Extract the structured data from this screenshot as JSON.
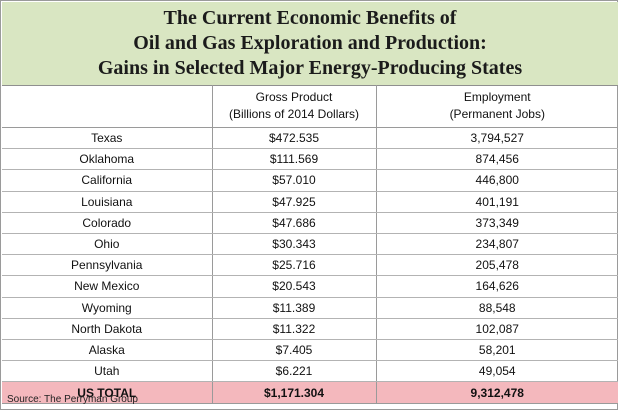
{
  "title": {
    "line1": "The Current Economic Benefits of",
    "line2": "Oil and Gas Exploration and Production:",
    "line3": "Gains in Selected Major Energy-Producing States"
  },
  "columns": {
    "state": "",
    "gross_product": {
      "line1": "Gross Product",
      "line2": "(Billions of 2014 Dollars)"
    },
    "employment": {
      "line1": "Employment",
      "line2": "(Permanent Jobs)"
    }
  },
  "rows": [
    {
      "state": "Texas",
      "gross_product": "$472.535",
      "employment": "3,794,527"
    },
    {
      "state": "Oklahoma",
      "gross_product": "$111.569",
      "employment": "874,456"
    },
    {
      "state": "California",
      "gross_product": "$57.010",
      "employment": "446,800"
    },
    {
      "state": "Louisiana",
      "gross_product": "$47.925",
      "employment": "401,191"
    },
    {
      "state": "Colorado",
      "gross_product": "$47.686",
      "employment": "373,349"
    },
    {
      "state": "Ohio",
      "gross_product": "$30.343",
      "employment": "234,807"
    },
    {
      "state": "Pennsylvania",
      "gross_product": "$25.716",
      "employment": "205,478"
    },
    {
      "state": "New Mexico",
      "gross_product": "$20.543",
      "employment": "164,626"
    },
    {
      "state": "Wyoming",
      "gross_product": "$11.389",
      "employment": "88,548"
    },
    {
      "state": "North Dakota",
      "gross_product": "$11.322",
      "employment": "102,087"
    },
    {
      "state": "Alaska",
      "gross_product": "$7.405",
      "employment": "58,201"
    },
    {
      "state": "Utah",
      "gross_product": "$6.221",
      "employment": "49,054"
    }
  ],
  "total": {
    "label": "US TOTAL",
    "gross_product": "$1,171.304",
    "employment": "9,312,478"
  },
  "source": "Source: The Perryman Group",
  "colors": {
    "title_background": "#d9e6c2",
    "total_row_background": "#f4b8bd",
    "border": "#9a9a9a"
  }
}
